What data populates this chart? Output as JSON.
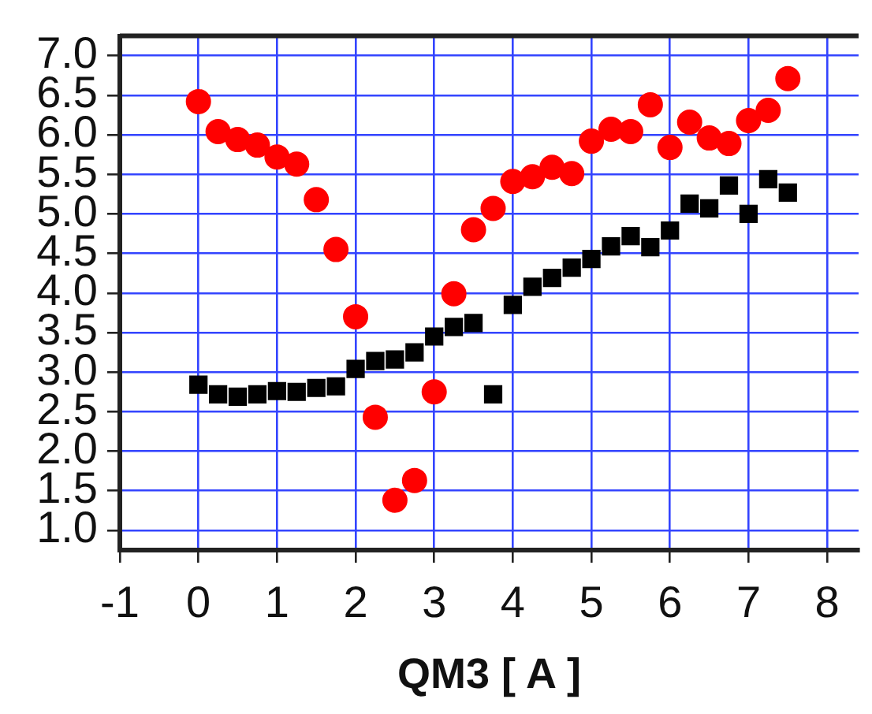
{
  "chart_data": {
    "type": "scatter",
    "xlabel": "QM3 [ A ]",
    "x": [
      0,
      0.25,
      0.5,
      0.75,
      1,
      1.25,
      1.5,
      1.75,
      2,
      2.25,
      2.5,
      2.75,
      3,
      3.25,
      3.5,
      3.75,
      4,
      4.25,
      4.5,
      4.75,
      5,
      5.25,
      5.5,
      5.75,
      6,
      6.25,
      6.5,
      6.75,
      7,
      7.25,
      7.5
    ],
    "series": [
      {
        "color": "#ff0000",
        "marker": "circle",
        "values": [
          6.42,
          6.04,
          5.94,
          5.87,
          5.72,
          5.63,
          5.18,
          4.55,
          3.7,
          2.43,
          1.38,
          1.63,
          2.75,
          3.99,
          4.8,
          5.07,
          5.41,
          5.47,
          5.59,
          5.51,
          5.92,
          6.07,
          6.04,
          6.38,
          5.84,
          6.16,
          5.96,
          5.89,
          6.18,
          6.31,
          6.71
        ]
      },
      {
        "color": "#000000",
        "marker": "square",
        "values": [
          2.84,
          2.72,
          2.69,
          2.72,
          2.76,
          2.75,
          2.8,
          2.82,
          3.04,
          3.14,
          3.16,
          3.25,
          3.45,
          3.57,
          3.62,
          2.72,
          3.85,
          4.08,
          4.19,
          4.32,
          4.43,
          4.59,
          4.72,
          4.58,
          4.79,
          5.13,
          5.07,
          5.36,
          5,
          5.44,
          5.27
        ]
      }
    ],
    "xlim": [
      -1,
      8.4
    ],
    "xticks": [
      -1,
      0,
      1,
      2,
      3,
      4,
      5,
      6,
      7,
      8
    ],
    "ylim": [
      0.75,
      7.25
    ],
    "yticks": [
      {
        "value": 1,
        "label": "1.0"
      },
      {
        "value": 1.5,
        "label": "1.5"
      },
      {
        "value": 2,
        "label": "2.0"
      },
      {
        "value": 2.5,
        "label": "2.5"
      },
      {
        "value": 3,
        "label": "3.0"
      },
      {
        "value": 3.5,
        "label": "3.5"
      },
      {
        "value": 4,
        "label": "4.0"
      },
      {
        "value": 4.5,
        "label": "4.5"
      },
      {
        "value": 5,
        "label": "5.0"
      },
      {
        "value": 5.5,
        "label": "5.5"
      },
      {
        "value": 6,
        "label": "6.0"
      },
      {
        "value": 6.5,
        "label": "6.5"
      },
      {
        "value": 7,
        "label": "7.0"
      }
    ],
    "grid": true
  }
}
